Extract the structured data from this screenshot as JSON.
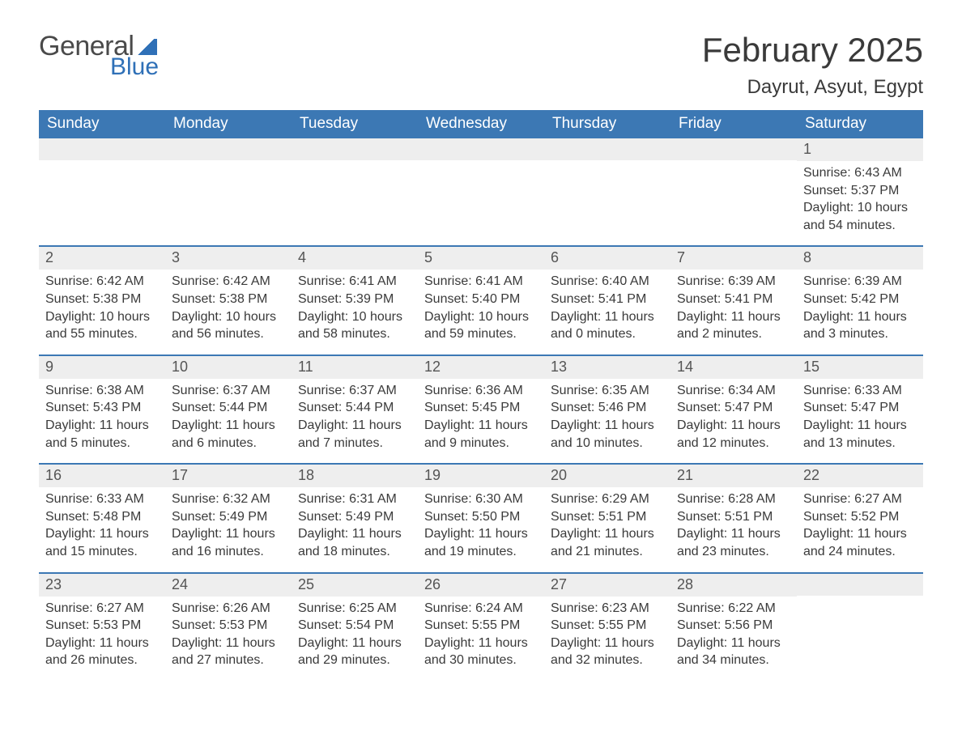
{
  "logo": {
    "text_general": "General",
    "text_blue": "Blue"
  },
  "header": {
    "month_title": "February 2025",
    "location": "Dayrut, Asyut, Egypt"
  },
  "colors": {
    "header_bg": "#3c78b4",
    "header_text": "#ffffff",
    "row_divider": "#3c78b4",
    "daynum_bg": "#eeeeee",
    "body_text": "#3a3a3a",
    "logo_blue": "#2f70b7",
    "page_bg": "#ffffff"
  },
  "calendar": {
    "days_of_week": [
      "Sunday",
      "Monday",
      "Tuesday",
      "Wednesday",
      "Thursday",
      "Friday",
      "Saturday"
    ],
    "leading_blanks": 6,
    "days": [
      {
        "n": 1,
        "sunrise": "Sunrise: 6:43 AM",
        "sunset": "Sunset: 5:37 PM",
        "daylight": "Daylight: 10 hours and 54 minutes."
      },
      {
        "n": 2,
        "sunrise": "Sunrise: 6:42 AM",
        "sunset": "Sunset: 5:38 PM",
        "daylight": "Daylight: 10 hours and 55 minutes."
      },
      {
        "n": 3,
        "sunrise": "Sunrise: 6:42 AM",
        "sunset": "Sunset: 5:38 PM",
        "daylight": "Daylight: 10 hours and 56 minutes."
      },
      {
        "n": 4,
        "sunrise": "Sunrise: 6:41 AM",
        "sunset": "Sunset: 5:39 PM",
        "daylight": "Daylight: 10 hours and 58 minutes."
      },
      {
        "n": 5,
        "sunrise": "Sunrise: 6:41 AM",
        "sunset": "Sunset: 5:40 PM",
        "daylight": "Daylight: 10 hours and 59 minutes."
      },
      {
        "n": 6,
        "sunrise": "Sunrise: 6:40 AM",
        "sunset": "Sunset: 5:41 PM",
        "daylight": "Daylight: 11 hours and 0 minutes."
      },
      {
        "n": 7,
        "sunrise": "Sunrise: 6:39 AM",
        "sunset": "Sunset: 5:41 PM",
        "daylight": "Daylight: 11 hours and 2 minutes."
      },
      {
        "n": 8,
        "sunrise": "Sunrise: 6:39 AM",
        "sunset": "Sunset: 5:42 PM",
        "daylight": "Daylight: 11 hours and 3 minutes."
      },
      {
        "n": 9,
        "sunrise": "Sunrise: 6:38 AM",
        "sunset": "Sunset: 5:43 PM",
        "daylight": "Daylight: 11 hours and 5 minutes."
      },
      {
        "n": 10,
        "sunrise": "Sunrise: 6:37 AM",
        "sunset": "Sunset: 5:44 PM",
        "daylight": "Daylight: 11 hours and 6 minutes."
      },
      {
        "n": 11,
        "sunrise": "Sunrise: 6:37 AM",
        "sunset": "Sunset: 5:44 PM",
        "daylight": "Daylight: 11 hours and 7 minutes."
      },
      {
        "n": 12,
        "sunrise": "Sunrise: 6:36 AM",
        "sunset": "Sunset: 5:45 PM",
        "daylight": "Daylight: 11 hours and 9 minutes."
      },
      {
        "n": 13,
        "sunrise": "Sunrise: 6:35 AM",
        "sunset": "Sunset: 5:46 PM",
        "daylight": "Daylight: 11 hours and 10 minutes."
      },
      {
        "n": 14,
        "sunrise": "Sunrise: 6:34 AM",
        "sunset": "Sunset: 5:47 PM",
        "daylight": "Daylight: 11 hours and 12 minutes."
      },
      {
        "n": 15,
        "sunrise": "Sunrise: 6:33 AM",
        "sunset": "Sunset: 5:47 PM",
        "daylight": "Daylight: 11 hours and 13 minutes."
      },
      {
        "n": 16,
        "sunrise": "Sunrise: 6:33 AM",
        "sunset": "Sunset: 5:48 PM",
        "daylight": "Daylight: 11 hours and 15 minutes."
      },
      {
        "n": 17,
        "sunrise": "Sunrise: 6:32 AM",
        "sunset": "Sunset: 5:49 PM",
        "daylight": "Daylight: 11 hours and 16 minutes."
      },
      {
        "n": 18,
        "sunrise": "Sunrise: 6:31 AM",
        "sunset": "Sunset: 5:49 PM",
        "daylight": "Daylight: 11 hours and 18 minutes."
      },
      {
        "n": 19,
        "sunrise": "Sunrise: 6:30 AM",
        "sunset": "Sunset: 5:50 PM",
        "daylight": "Daylight: 11 hours and 19 minutes."
      },
      {
        "n": 20,
        "sunrise": "Sunrise: 6:29 AM",
        "sunset": "Sunset: 5:51 PM",
        "daylight": "Daylight: 11 hours and 21 minutes."
      },
      {
        "n": 21,
        "sunrise": "Sunrise: 6:28 AM",
        "sunset": "Sunset: 5:51 PM",
        "daylight": "Daylight: 11 hours and 23 minutes."
      },
      {
        "n": 22,
        "sunrise": "Sunrise: 6:27 AM",
        "sunset": "Sunset: 5:52 PM",
        "daylight": "Daylight: 11 hours and 24 minutes."
      },
      {
        "n": 23,
        "sunrise": "Sunrise: 6:27 AM",
        "sunset": "Sunset: 5:53 PM",
        "daylight": "Daylight: 11 hours and 26 minutes."
      },
      {
        "n": 24,
        "sunrise": "Sunrise: 6:26 AM",
        "sunset": "Sunset: 5:53 PM",
        "daylight": "Daylight: 11 hours and 27 minutes."
      },
      {
        "n": 25,
        "sunrise": "Sunrise: 6:25 AM",
        "sunset": "Sunset: 5:54 PM",
        "daylight": "Daylight: 11 hours and 29 minutes."
      },
      {
        "n": 26,
        "sunrise": "Sunrise: 6:24 AM",
        "sunset": "Sunset: 5:55 PM",
        "daylight": "Daylight: 11 hours and 30 minutes."
      },
      {
        "n": 27,
        "sunrise": "Sunrise: 6:23 AM",
        "sunset": "Sunset: 5:55 PM",
        "daylight": "Daylight: 11 hours and 32 minutes."
      },
      {
        "n": 28,
        "sunrise": "Sunrise: 6:22 AM",
        "sunset": "Sunset: 5:56 PM",
        "daylight": "Daylight: 11 hours and 34 minutes."
      }
    ]
  }
}
